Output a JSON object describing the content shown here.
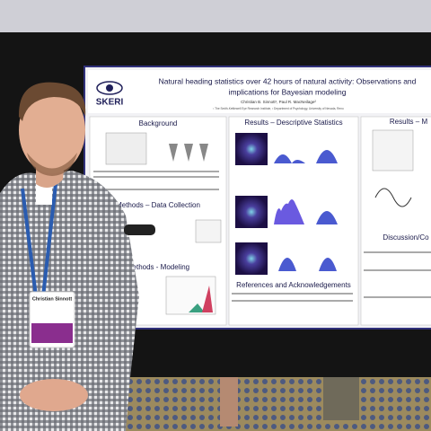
{
  "poster": {
    "logo": "SKERI",
    "title_lines": [
      "Natural heading statistics over 42 hours of natural activity: Observations and",
      "implications for Bayesian modeling"
    ],
    "authors": "Christian B. Sinnott¹, Paul R. MacNeilage²",
    "affiliations": "¹ The Smith-Kettlewell Eye Research Institute, ² Department of Psychology, University of Nevada, Reno",
    "sections": [
      "Background",
      "Results – Descriptive Statistics",
      "Results – M",
      "Methods – Data Collection",
      "Methods - Modeling",
      "References and Acknowledgements",
      "Discussion/Co"
    ]
  },
  "badge": {
    "name": "Christian Sinnott"
  }
}
